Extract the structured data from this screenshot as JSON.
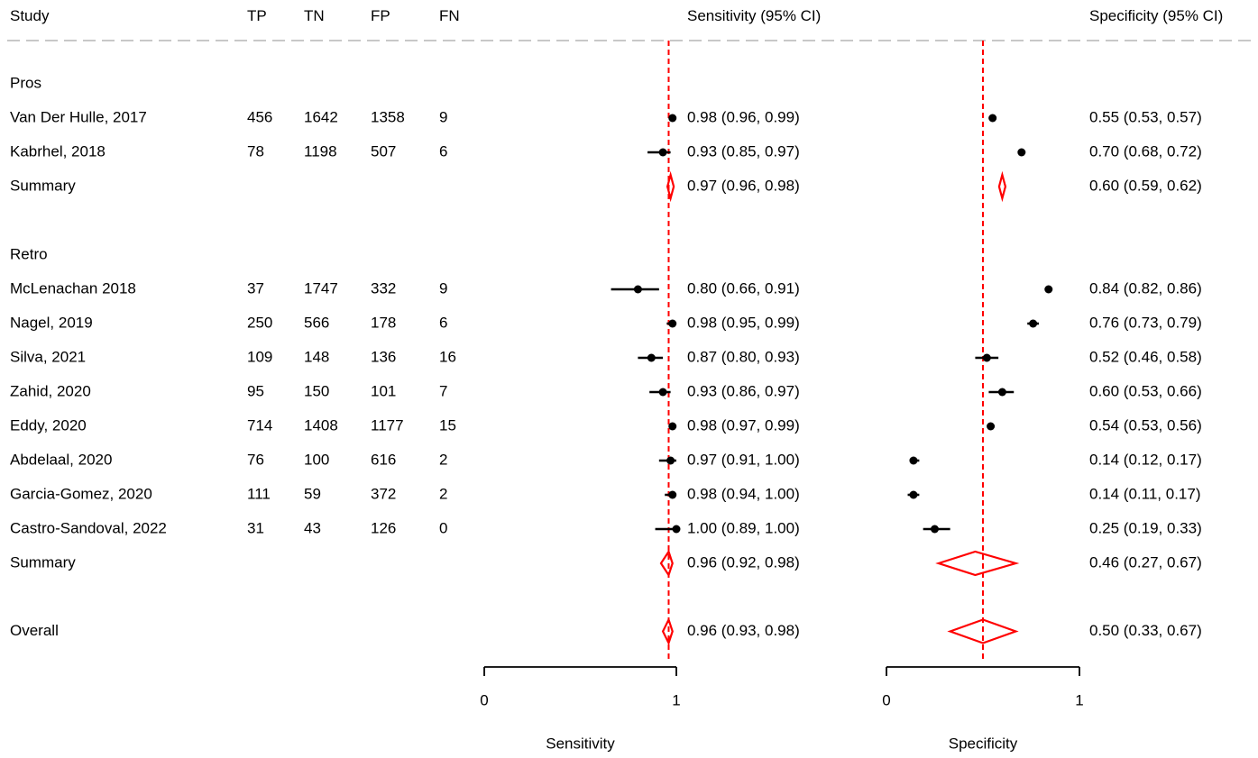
{
  "chart_data": {
    "type": "forest",
    "headers": {
      "study": "Study",
      "tp": "TP",
      "tn": "TN",
      "fp": "FP",
      "fn": "FN",
      "sensitivity": "Sensitivity (95% CI)",
      "specificity": "Specificity (95% CI)"
    },
    "axis_labels": {
      "sensitivity": "Sensitivity",
      "specificity": "Specificity"
    },
    "axis_range": [
      0,
      1
    ],
    "axis_ticks": [
      "0",
      "1"
    ],
    "reference_lines": {
      "sensitivity": 0.96,
      "specificity": 0.5
    },
    "colors": {
      "summary": "#ff0000",
      "reference_line": "#ff0000",
      "study": "#000000",
      "header_rule": "#c8c8c8"
    },
    "groups": [
      {
        "label": "Pros",
        "studies": [
          {
            "name": "Van Der Hulle, 2017",
            "tp": "456",
            "tn": "1642",
            "fp": "1358",
            "fn": "9",
            "sens": 0.98,
            "sens_lo": 0.96,
            "sens_hi": 0.99,
            "sens_text": "0.98 (0.96, 0.99)",
            "spec": 0.55,
            "spec_lo": 0.53,
            "spec_hi": 0.57,
            "spec_text": "0.55 (0.53, 0.57)"
          },
          {
            "name": "Kabrhel, 2018",
            "tp": "78",
            "tn": "1198",
            "fp": "507",
            "fn": "6",
            "sens": 0.93,
            "sens_lo": 0.85,
            "sens_hi": 0.97,
            "sens_text": "0.93 (0.85, 0.97)",
            "spec": 0.7,
            "spec_lo": 0.68,
            "spec_hi": 0.72,
            "spec_text": "0.70 (0.68, 0.72)"
          }
        ],
        "summary": {
          "label": "Summary",
          "sens": 0.97,
          "sens_lo": 0.96,
          "sens_hi": 0.98,
          "sens_text": "0.97 (0.96, 0.98)",
          "spec": 0.6,
          "spec_lo": 0.59,
          "spec_hi": 0.62,
          "spec_text": "0.60 (0.59, 0.62)"
        }
      },
      {
        "label": "Retro",
        "studies": [
          {
            "name": "McLenachan 2018",
            "tp": "37",
            "tn": "1747",
            "fp": "332",
            "fn": "9",
            "sens": 0.8,
            "sens_lo": 0.66,
            "sens_hi": 0.91,
            "sens_text": "0.80 (0.66, 0.91)",
            "spec": 0.84,
            "spec_lo": 0.82,
            "spec_hi": 0.86,
            "spec_text": "0.84 (0.82, 0.86)"
          },
          {
            "name": "Nagel, 2019",
            "tp": "250",
            "tn": "566",
            "fp": "178",
            "fn": "6",
            "sens": 0.98,
            "sens_lo": 0.95,
            "sens_hi": 0.99,
            "sens_text": "0.98 (0.95, 0.99)",
            "spec": 0.76,
            "spec_lo": 0.73,
            "spec_hi": 0.79,
            "spec_text": "0.76 (0.73, 0.79)"
          },
          {
            "name": "Silva, 2021",
            "tp": "109",
            "tn": "148",
            "fp": "136",
            "fn": "16",
            "sens": 0.87,
            "sens_lo": 0.8,
            "sens_hi": 0.93,
            "sens_text": "0.87 (0.80, 0.93)",
            "spec": 0.52,
            "spec_lo": 0.46,
            "spec_hi": 0.58,
            "spec_text": "0.52 (0.46, 0.58)"
          },
          {
            "name": "Zahid, 2020",
            "tp": "95",
            "tn": "150",
            "fp": "101",
            "fn": "7",
            "sens": 0.93,
            "sens_lo": 0.86,
            "sens_hi": 0.97,
            "sens_text": "0.93 (0.86, 0.97)",
            "spec": 0.6,
            "spec_lo": 0.53,
            "spec_hi": 0.66,
            "spec_text": "0.60 (0.53, 0.66)"
          },
          {
            "name": "Eddy, 2020",
            "tp": "714",
            "tn": "1408",
            "fp": "1177",
            "fn": "15",
            "sens": 0.98,
            "sens_lo": 0.97,
            "sens_hi": 0.99,
            "sens_text": "0.98 (0.97, 0.99)",
            "spec": 0.54,
            "spec_lo": 0.53,
            "spec_hi": 0.56,
            "spec_text": "0.54 (0.53, 0.56)"
          },
          {
            "name": "Abdelaal, 2020",
            "tp": "76",
            "tn": "100",
            "fp": "616",
            "fn": "2",
            "sens": 0.97,
            "sens_lo": 0.91,
            "sens_hi": 1.0,
            "sens_text": "0.97 (0.91, 1.00)",
            "spec": 0.14,
            "spec_lo": 0.12,
            "spec_hi": 0.17,
            "spec_text": "0.14 (0.12, 0.17)"
          },
          {
            "name": "Garcia-Gomez, 2020",
            "tp": "111",
            "tn": "59",
            "fp": "372",
            "fn": "2",
            "sens": 0.98,
            "sens_lo": 0.94,
            "sens_hi": 1.0,
            "sens_text": "0.98 (0.94, 1.00)",
            "spec": 0.14,
            "spec_lo": 0.11,
            "spec_hi": 0.17,
            "spec_text": "0.14 (0.11, 0.17)"
          },
          {
            "name": "Castro-Sandoval, 2022",
            "tp": "31",
            "tn": "43",
            "fp": "126",
            "fn": "0",
            "sens": 1.0,
            "sens_lo": 0.89,
            "sens_hi": 1.0,
            "sens_text": "1.00 (0.89, 1.00)",
            "spec": 0.25,
            "spec_lo": 0.19,
            "spec_hi": 0.33,
            "spec_text": "0.25 (0.19, 0.33)"
          }
        ],
        "summary": {
          "label": "Summary",
          "sens": 0.96,
          "sens_lo": 0.92,
          "sens_hi": 0.98,
          "sens_text": "0.96 (0.92, 0.98)",
          "spec": 0.46,
          "spec_lo": 0.27,
          "spec_hi": 0.67,
          "spec_text": "0.46 (0.27, 0.67)"
        }
      }
    ],
    "overall": {
      "label": "Overall",
      "sens": 0.96,
      "sens_lo": 0.93,
      "sens_hi": 0.98,
      "sens_text": "0.96 (0.93, 0.98)",
      "spec": 0.5,
      "spec_lo": 0.33,
      "spec_hi": 0.67,
      "spec_text": "0.50 (0.33, 0.67)"
    }
  }
}
